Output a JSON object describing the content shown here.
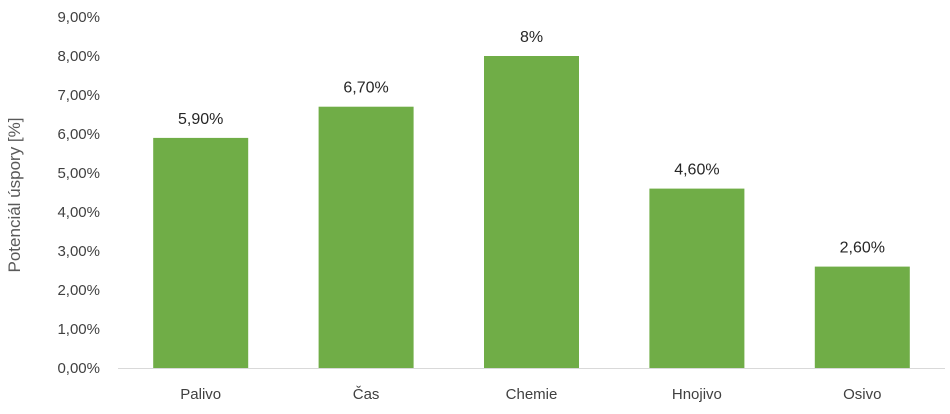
{
  "chart_data": {
    "type": "bar",
    "title": "",
    "xlabel": "",
    "ylabel": "Potenciál úspory [%]",
    "ylim": [
      0,
      9
    ],
    "y_ticks": [
      "0,00%",
      "1,00%",
      "2,00%",
      "3,00%",
      "4,00%",
      "5,00%",
      "6,00%",
      "7,00%",
      "8,00%",
      "9,00%"
    ],
    "grid": false,
    "categories": [
      "Palivo",
      "Čas",
      "Chemie",
      "Hnojivo",
      "Osivo"
    ],
    "values": [
      5.9,
      6.7,
      8,
      4.6,
      2.6
    ],
    "data_labels": [
      "5,90%",
      "6,70%",
      "8%",
      "4,60%",
      "2,60%"
    ],
    "bar_color": "#70ad47",
    "axis_color": "#d9d9d9"
  }
}
